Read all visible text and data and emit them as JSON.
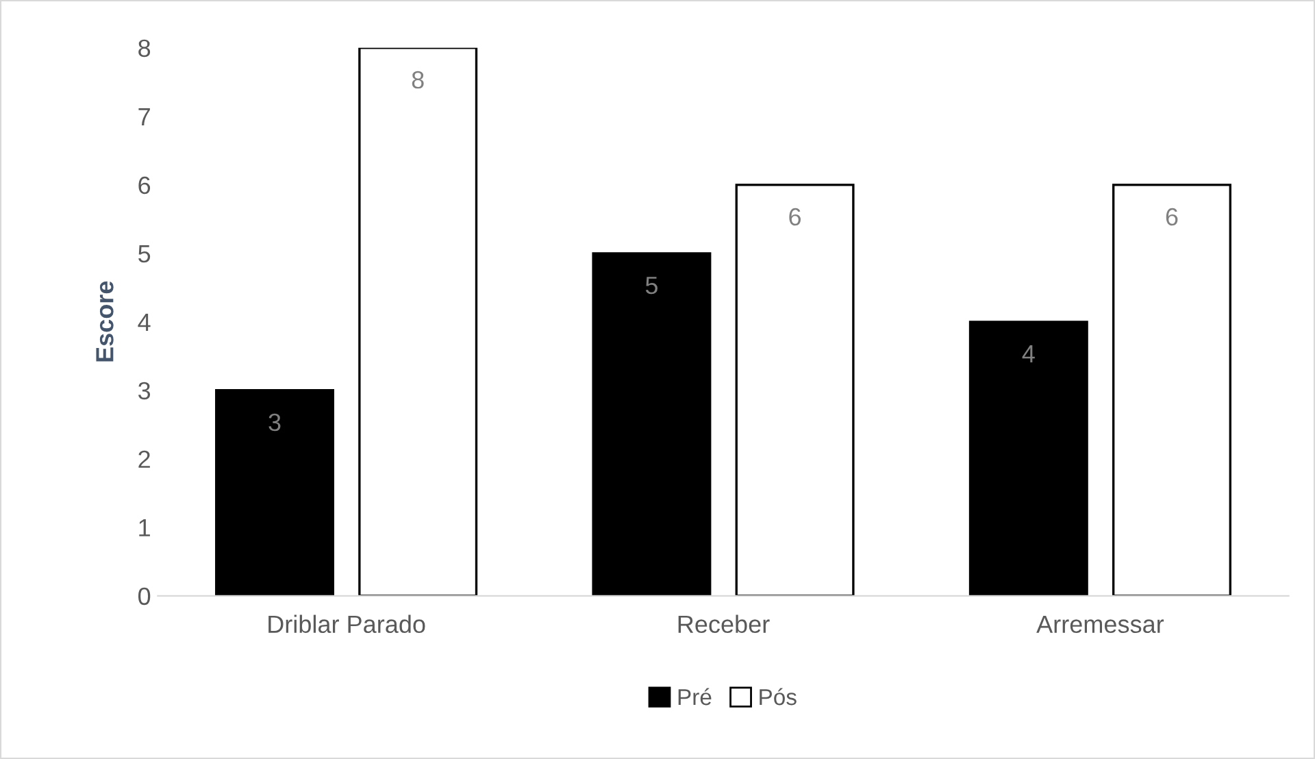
{
  "chart_data": {
    "type": "bar",
    "ylabel": "Escore",
    "categories": [
      "Driblar Parado",
      "Receber",
      "Arremessar"
    ],
    "series": [
      {
        "name": "Pré",
        "color": "#000000",
        "values": [
          3,
          5,
          4
        ]
      },
      {
        "name": "Pós",
        "color": "#ffffff",
        "values": [
          8,
          6,
          6
        ]
      }
    ],
    "ylim": [
      0,
      8
    ],
    "yticks": [
      0,
      1,
      2,
      3,
      4,
      5,
      6,
      7,
      8
    ],
    "data_labels": true,
    "grid": false,
    "legend": "bottom"
  }
}
